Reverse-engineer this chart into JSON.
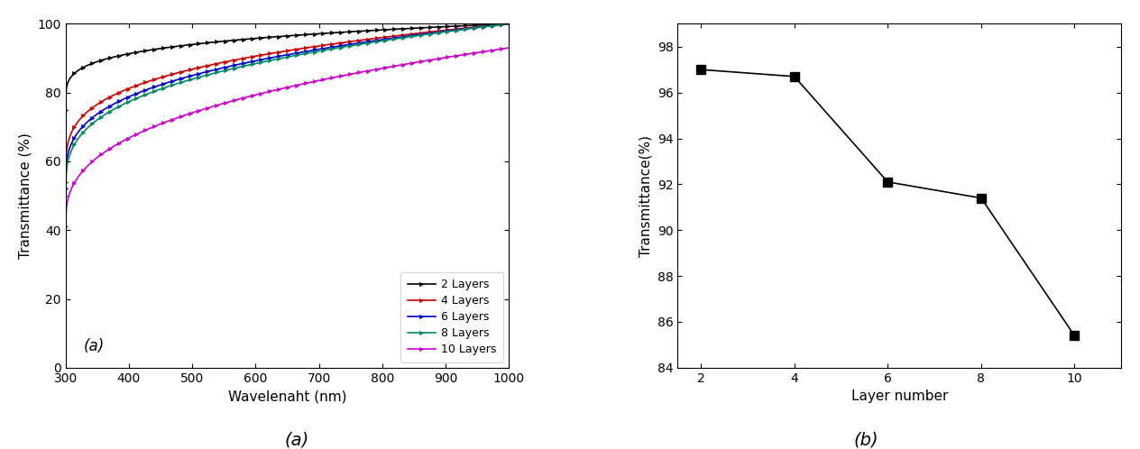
{
  "panel_a": {
    "xlabel": "Wavelenaht (nm)",
    "ylabel": "Transmittance (%)",
    "label_a": "(a)",
    "xlim": [
      300,
      1000
    ],
    "ylim": [
      0,
      100
    ],
    "xticks": [
      300,
      400,
      500,
      600,
      700,
      800,
      900,
      1000
    ],
    "yticks": [
      0,
      20,
      40,
      60,
      80,
      100
    ],
    "series": [
      {
        "label": "2 Layers",
        "color": "#000000",
        "start": 75,
        "end": 100,
        "curve_power": 0.22
      },
      {
        "label": "4 Layers",
        "color": "#cc0000",
        "start": 54,
        "end": 100,
        "curve_power": 0.27
      },
      {
        "label": "6 Layers",
        "color": "#0000cc",
        "start": 52,
        "end": 100,
        "curve_power": 0.3
      },
      {
        "label": "8 Layers",
        "color": "#008866",
        "start": 50,
        "end": 100,
        "curve_power": 0.31
      },
      {
        "label": "10 Layers",
        "color": "#cc00cc",
        "start": 41,
        "end": 93,
        "curve_power": 0.36
      }
    ],
    "marker_every": 10
  },
  "panel_b": {
    "xlabel": "Layer number",
    "ylabel": "Transmittance(%)",
    "label_b": "(b)",
    "x": [
      2,
      4,
      6,
      8,
      10
    ],
    "y": [
      97.0,
      96.7,
      92.1,
      91.4,
      85.4
    ],
    "xlim": [
      1.5,
      11
    ],
    "ylim": [
      84,
      99
    ],
    "xticks": [
      2,
      4,
      6,
      8,
      10
    ],
    "yticks": [
      84,
      86,
      88,
      90,
      92,
      94,
      96,
      98
    ],
    "marker": "s",
    "markersize": 7,
    "color": "#000000"
  },
  "caption_a": "(a)",
  "caption_b": "(b)"
}
